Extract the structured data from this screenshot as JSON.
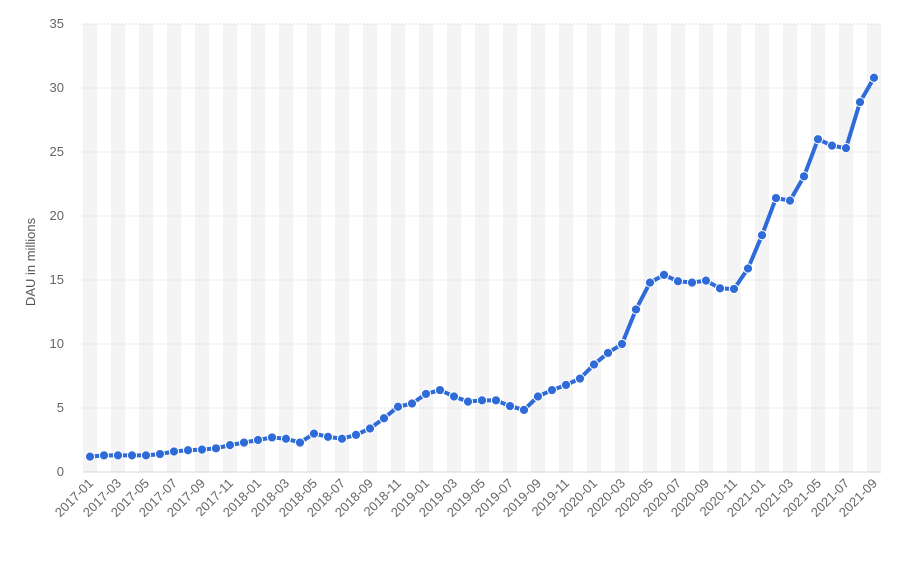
{
  "chart_data": {
    "type": "line",
    "title": "",
    "xlabel": "",
    "ylabel": "DAU in millions",
    "ylim": [
      0,
      35
    ],
    "yticks": [
      "0",
      "5",
      "10",
      "15",
      "20",
      "25",
      "30",
      "35"
    ],
    "grid": true,
    "legend": "none",
    "x": [
      "2017-01",
      "2017-02",
      "2017-03",
      "2017-04",
      "2017-05",
      "2017-06",
      "2017-07",
      "2017-08",
      "2017-09",
      "2017-10",
      "2017-11",
      "2017-12",
      "2018-01",
      "2018-02",
      "2018-03",
      "2018-04",
      "2018-05",
      "2018-06",
      "2018-07",
      "2018-08",
      "2018-09",
      "2018-10",
      "2018-11",
      "2018-12",
      "2019-01",
      "2019-02",
      "2019-03",
      "2019-04",
      "2019-05",
      "2019-06",
      "2019-07",
      "2019-08",
      "2019-09",
      "2019-10",
      "2019-11",
      "2019-12",
      "2020-01",
      "2020-02",
      "2020-03",
      "2020-04",
      "2020-05",
      "2020-06",
      "2020-07",
      "2020-08",
      "2020-09",
      "2020-10",
      "2020-11",
      "2020-12",
      "2021-01",
      "2021-02",
      "2021-03",
      "2021-04",
      "2021-05",
      "2021-06",
      "2021-07",
      "2021-08",
      "2021-09"
    ],
    "xtick_labels": [
      "2017-01",
      "2017-03",
      "2017-05",
      "2017-07",
      "2017-09",
      "2017-11",
      "2018-01",
      "2018-03",
      "2018-05",
      "2018-07",
      "2018-09",
      "2018-11",
      "2019-01",
      "2019-03",
      "2019-05",
      "2019-07",
      "2019-09",
      "2019-11",
      "2020-01",
      "2020-03",
      "2020-05",
      "2020-07",
      "2020-09",
      "2020-11",
      "2021-01",
      "2021-03",
      "2021-05",
      "2021-07",
      "2021-09"
    ],
    "series": [
      {
        "values": [
          1.2,
          1.3,
          1.3,
          1.3,
          1.3,
          1.4,
          1.6,
          1.7,
          1.75,
          1.85,
          2.1,
          2.3,
          2.5,
          2.7,
          2.6,
          2.3,
          3.0,
          2.75,
          2.6,
          2.9,
          3.4,
          4.2,
          5.1,
          5.35,
          6.1,
          6.4,
          5.9,
          5.5,
          5.6,
          5.6,
          5.15,
          4.85,
          5.9,
          6.4,
          6.8,
          7.3,
          8.4,
          9.3,
          10.0,
          12.7,
          14.8,
          15.4,
          14.9,
          14.8,
          14.95,
          14.35,
          14.3,
          15.9,
          18.5,
          21.4,
          21.2,
          23.1,
          26.0,
          25.5,
          25.3,
          28.9,
          30.8
        ],
        "color": "#2f6bd8"
      }
    ]
  }
}
